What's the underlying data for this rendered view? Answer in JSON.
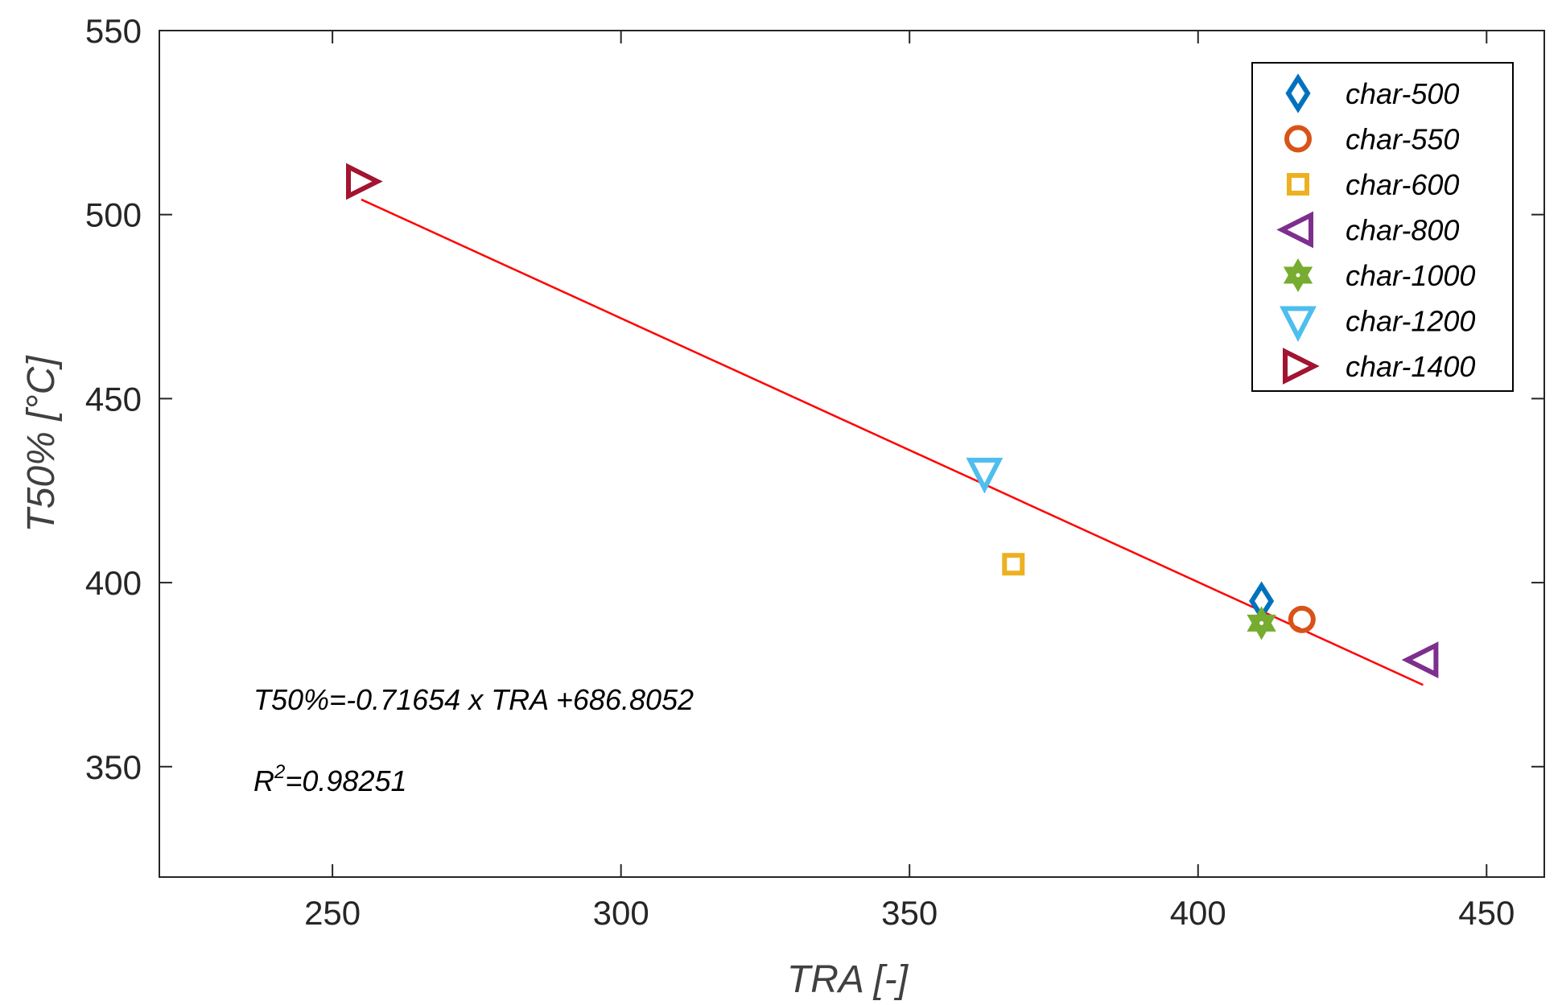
{
  "chart_data": {
    "type": "scatter",
    "title": "",
    "xlabel": "TRA [-]",
    "ylabel": "T50%  [°C]",
    "xlim": [
      220,
      460
    ],
    "ylim": [
      320,
      550
    ],
    "xticks": [
      250,
      300,
      350,
      400,
      450
    ],
    "yticks": [
      350,
      400,
      450,
      500,
      550
    ],
    "grid": false,
    "legend_position": "top-right",
    "series": [
      {
        "name": "char-500",
        "marker": "diamond",
        "color": "#0072BD",
        "x": [
          411
        ],
        "y": [
          395
        ]
      },
      {
        "name": "char-550",
        "marker": "circle",
        "color": "#D95319",
        "x": [
          418
        ],
        "y": [
          390
        ]
      },
      {
        "name": "char-600",
        "marker": "square",
        "color": "#EDB120",
        "x": [
          368
        ],
        "y": [
          405
        ]
      },
      {
        "name": "char-800",
        "marker": "triangle-left",
        "color": "#7E2F8E",
        "x": [
          439
        ],
        "y": [
          379
        ]
      },
      {
        "name": "char-1000",
        "marker": "hexagram",
        "color": "#77AC30",
        "x": [
          411
        ],
        "y": [
          389
        ]
      },
      {
        "name": "char-1200",
        "marker": "triangle-down",
        "color": "#4DBEEE",
        "x": [
          363
        ],
        "y": [
          430
        ]
      },
      {
        "name": "char-1400",
        "marker": "triangle-right",
        "color": "#A2142F",
        "x": [
          255
        ],
        "y": [
          509
        ]
      }
    ],
    "fit_line": {
      "x": [
        255,
        439
      ],
      "y": [
        504.1,
        372.2
      ],
      "color": "#FF0000"
    },
    "annotations": {
      "equation": "T50%=-0.71654 x TRA +686.8052",
      "r2_base": "R",
      "r2_sup": "2",
      "r2_value": "=0.98251"
    }
  }
}
